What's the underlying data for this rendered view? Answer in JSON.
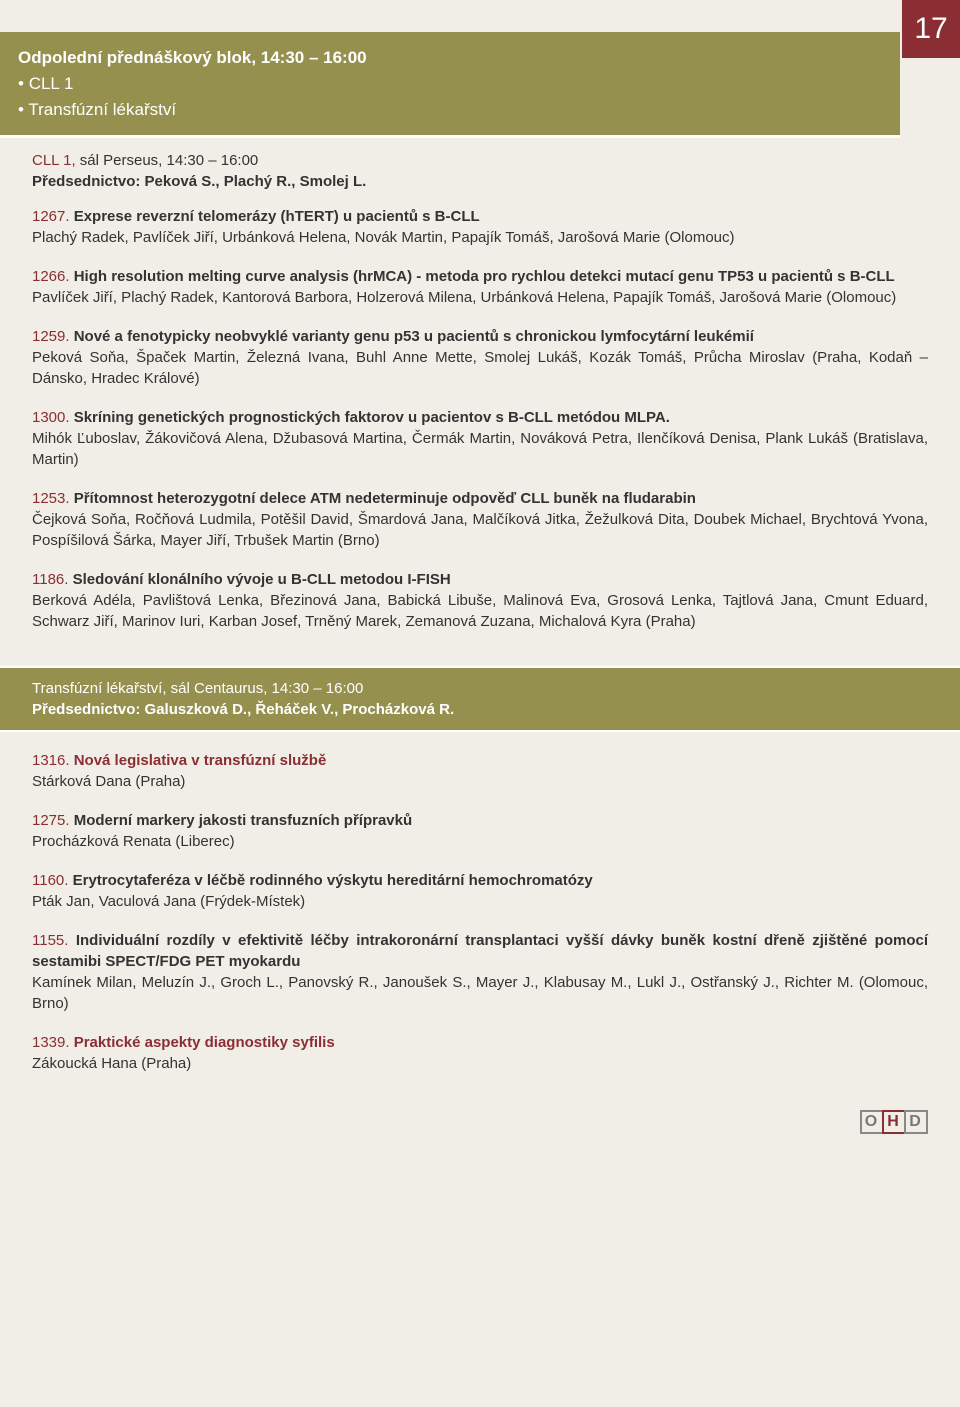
{
  "page_number": "17",
  "session_header": {
    "title": "Odpolední přednáškový blok, 14:30 – 16:00",
    "sub1": "CLL 1",
    "sub2": "Transfúzní lékařství"
  },
  "block1_head": {
    "red": "CLL 1,",
    "rest": " sál Perseus, 14:30 – 16:00",
    "chair": "Předsednictvo: Peková S., Plachý R., Smolej L."
  },
  "abstracts1": [
    {
      "num": "1267.",
      "title": " Exprese reverzní telomerázy (hTERT) u pacientů s B-CLL",
      "authors": "Plachý Radek, Pavlíček Jiří, Urbánková Helena, Novák Martin, Papajík Tomáš, Jarošová Marie (Olomouc)"
    },
    {
      "num": "1266.",
      "title": " High resolution melting curve analysis (hrMCA) - metoda pro rychlou detekci mutací genu TP53 u pacientů s B-CLL",
      "authors": "Pavlíček Jiří, Plachý Radek, Kantorová Barbora, Holzerová Milena, Urbánková Helena, Papajík Tomáš, Jarošová Marie (Olomouc)"
    },
    {
      "num": "1259.",
      "title": " Nové a fenotypicky neobvyklé varianty genu p53 u pacientů s chronickou lymfocytární leukémií",
      "authors": "Peková Soňa, Špaček Martin, Železná Ivana, Buhl Anne Mette, Smolej Lukáš, Kozák Tomáš, Průcha Miroslav (Praha, Kodaň – Dánsko, Hradec Králové)"
    },
    {
      "num": "1300.",
      "title": " Skríning genetických prognostických faktorov u pacientov s B-CLL metódou MLPA.",
      "authors": "Mihók Ľuboslav, Žákovičová Alena, Džubasová Martina, Čermák Martin, Nováková Petra, Ilenčíková Denisa, Plank Lukáš (Bratislava, Martin)"
    },
    {
      "num": "1253.",
      "title": " Přítomnost heterozygotní delece ATM nedeterminuje odpověď CLL buněk na fludarabin",
      "authors": "Čejková Soňa, Ročňová Ludmila, Potěšil David, Šmardová Jana, Malčíková Jitka, Žežulková Dita, Doubek Michael, Brychtová Yvona, Pospíšilová Šárka, Mayer Jiří, Trbušek Martin (Brno)"
    },
    {
      "num": "1186.",
      "title": " Sledování klonálního vývoje u B-CLL metodou I-FISH",
      "authors": "Berková Adéla, Pavlištová Lenka, Březinová Jana, Babická Libuše, Malinová Eva, Grosová Lenka, Tajtlová Jana, Cmunt Eduard, Schwarz Jiří, Marinov Iuri, Karban Josef, Trněný Marek, Zemanová Zuzana, Michalová Kyra (Praha)"
    }
  ],
  "block2_head": {
    "white1": "Transfúzní lékařství, ",
    "rest": "sál Centaurus, 14:30 – 16:00",
    "chair": "Předsednictvo: Galuszková D., Řeháček V., Procházková R."
  },
  "abstracts2": [
    {
      "num": "1316.",
      "title": " Nová legislativa v transfúzní službě",
      "authors": "Stárková Dana (Praha)"
    },
    {
      "num": "1275.",
      "title": " Moderní markery jakosti transfuzních přípravků",
      "authors": "Procházková Renata (Liberec)"
    },
    {
      "num": "1160.",
      "title": " Erytrocytaferéza v léčbě rodinného výskytu hereditární hemochromatózy",
      "authors": "Pták Jan, Vaculová Jana (Frýdek-Místek)"
    },
    {
      "num": "1155.",
      "title": " Individuální rozdíly v efektivitě léčby intrakoronární transplantaci vyšší dávky buněk kostní dřeně zjištěné pomocí sestamibi SPECT/FDG PET myokardu",
      "authors": "Kamínek Milan, Meluzín J., Groch L., Panovský R., Janoušek S., Mayer J., Klabusay M., Lukl J., Ostřanský J., Richter M. (Olomouc, Brno)"
    },
    {
      "num": "1339.",
      "title": " Praktické aspekty diagnostiky syfilis",
      "authors": "Zákoucká Hana (Praha)"
    }
  ],
  "logo": {
    "o": "O",
    "h": "H",
    "d": "D"
  }
}
